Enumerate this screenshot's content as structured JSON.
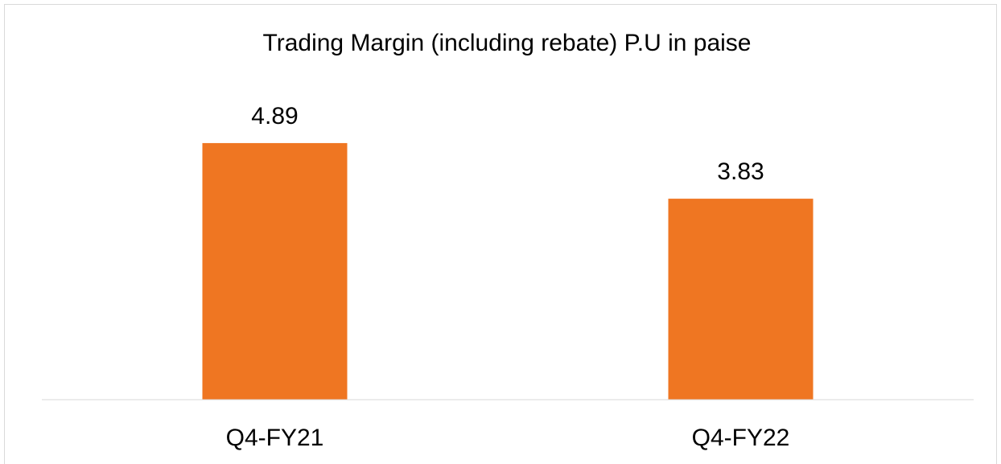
{
  "chart_data": {
    "type": "bar",
    "title": "Trading Margin (including rebate) P.U in paise",
    "categories": [
      "Q4-FY21",
      "Q4-FY22"
    ],
    "values": [
      4.89,
      3.83
    ],
    "color": "#ef7622",
    "ylim": [
      0,
      6
    ]
  }
}
